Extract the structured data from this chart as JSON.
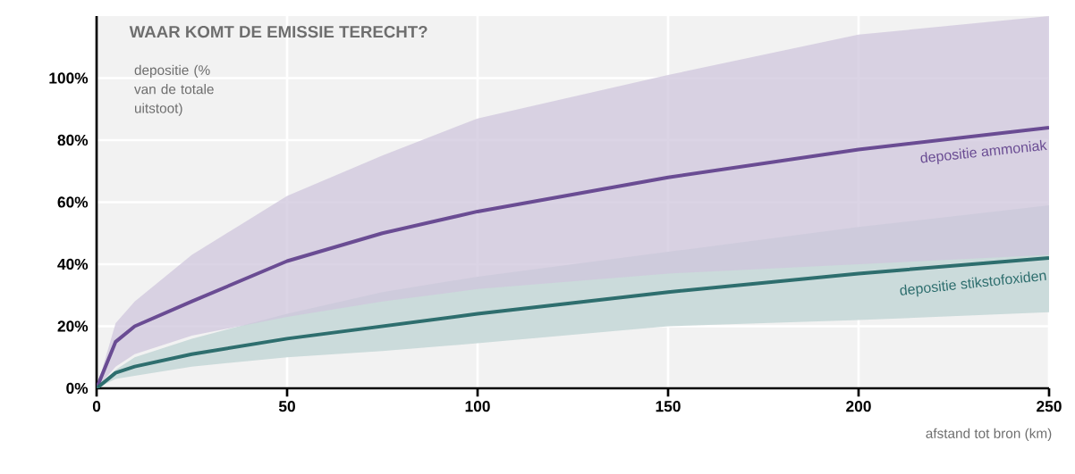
{
  "chart_data": {
    "type": "line",
    "title": "WAAR KOMT DE EMISSIE TERECHT?",
    "ylabel": "depositie (% van de totale uitstoot)",
    "xlabel": "afstand tot bron (km)",
    "x": [
      0,
      5,
      10,
      25,
      50,
      75,
      100,
      150,
      200,
      250
    ],
    "series": [
      {
        "name": "depositie ammoniak",
        "color": "#6a4c93",
        "values": [
          0,
          15,
          20,
          28,
          41,
          50,
          57,
          68,
          77,
          84
        ],
        "lower": [
          0,
          7,
          11,
          17,
          23,
          28,
          32,
          37,
          40,
          43
        ],
        "upper": [
          0,
          21,
          28,
          43,
          62,
          75,
          87,
          101,
          114,
          120
        ]
      },
      {
        "name": "depositie stikstofoxiden",
        "color": "#2e6e6e",
        "values": [
          0,
          5,
          7,
          11,
          16,
          20,
          24,
          31,
          37,
          42
        ],
        "lower": [
          0,
          3,
          4,
          7,
          10,
          12,
          14.5,
          20,
          22,
          24.5
        ],
        "upper": [
          0,
          6,
          10,
          16,
          24,
          31,
          36,
          44,
          52,
          59
        ]
      }
    ],
    "xlim": [
      0,
      250
    ],
    "ylim": [
      0,
      120
    ],
    "xticks": [
      0,
      50,
      100,
      150,
      200,
      250
    ],
    "yticks": [
      {
        "value": 0,
        "label": "0%"
      },
      {
        "value": 20,
        "label": "20%"
      },
      {
        "value": 40,
        "label": "40%"
      },
      {
        "value": 60,
        "label": "60%"
      },
      {
        "value": 80,
        "label": "80%"
      },
      {
        "value": 100,
        "label": "100%"
      }
    ],
    "grid": true,
    "line_style": "solid",
    "marker": "none"
  }
}
